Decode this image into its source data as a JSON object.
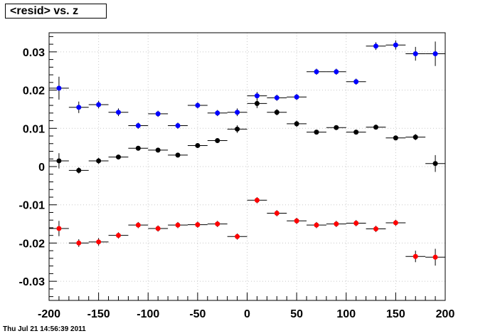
{
  "chart_data": {
    "type": "scatter",
    "title": "<resid> vs. z",
    "xlabel": "",
    "ylabel": "",
    "xlim": [
      -200,
      200
    ],
    "ylim": [
      -0.035,
      0.035
    ],
    "grid": true,
    "x_ticks": [
      -200,
      -150,
      -100,
      -50,
      0,
      50,
      100,
      150,
      200
    ],
    "x_tick_labels": [
      "-200",
      "-150",
      "-100",
      "-50",
      "0",
      "50",
      "100",
      "150",
      "200"
    ],
    "y_ticks": [
      -0.03,
      -0.02,
      -0.01,
      0,
      0.01,
      0.02,
      0.03
    ],
    "y_tick_labels": [
      "-0.03",
      "-0.02",
      "-0.01",
      "0",
      "0.01",
      "0.02",
      "0.03"
    ],
    "x": [
      -190,
      -170,
      -150,
      -130,
      -110,
      -90,
      -70,
      -50,
      -30,
      -10,
      10,
      30,
      50,
      70,
      90,
      110,
      130,
      150,
      170,
      190
    ],
    "xerr": 10,
    "series": [
      {
        "color": "#0000ff",
        "values": [
          0.0205,
          0.0155,
          0.0162,
          0.0142,
          0.0107,
          0.0138,
          0.0107,
          0.016,
          0.014,
          0.0142,
          0.0185,
          0.018,
          0.0182,
          0.0248,
          0.0248,
          0.0222,
          0.0315,
          0.0318,
          0.0295,
          0.0295
        ],
        "errors": [
          0.003,
          0.0015,
          0.001,
          0.001,
          0.0008,
          0.0008,
          0.0008,
          0.0008,
          0.0008,
          0.001,
          0.001,
          0.0008,
          0.0008,
          0.0008,
          0.0008,
          0.0008,
          0.001,
          0.0012,
          0.0018,
          0.0032
        ]
      },
      {
        "color": "#000000",
        "values": [
          0.0015,
          -0.001,
          0.0015,
          0.0025,
          0.0048,
          0.0043,
          0.003,
          0.0055,
          0.0068,
          0.0098,
          0.0165,
          0.0142,
          0.0112,
          0.009,
          0.0102,
          0.009,
          0.0103,
          0.0075,
          0.0077,
          0.0008
        ],
        "errors": [
          0.002,
          0.0008,
          0.0008,
          0.0006,
          0.0006,
          0.0006,
          0.0006,
          0.0006,
          0.0006,
          0.001,
          0.0012,
          0.0008,
          0.0008,
          0.0006,
          0.0006,
          0.0006,
          0.0006,
          0.0006,
          0.0008,
          0.0022
        ]
      },
      {
        "color": "#ff0000",
        "values": [
          -0.0162,
          -0.02,
          -0.0197,
          -0.018,
          -0.0153,
          -0.0162,
          -0.0153,
          -0.0152,
          -0.015,
          -0.0183,
          -0.0088,
          -0.0122,
          -0.0142,
          -0.0153,
          -0.015,
          -0.0148,
          -0.0163,
          -0.0147,
          -0.0235,
          -0.0237
        ],
        "errors": [
          0.002,
          0.001,
          0.001,
          0.0008,
          0.0008,
          0.0008,
          0.0008,
          0.0008,
          0.0008,
          0.0008,
          0.0008,
          0.0008,
          0.0008,
          0.0008,
          0.0008,
          0.0008,
          0.0008,
          0.0008,
          0.0015,
          0.0022
        ]
      }
    ]
  },
  "timestamp": "Thu Jul 21 14:56:39 2011"
}
